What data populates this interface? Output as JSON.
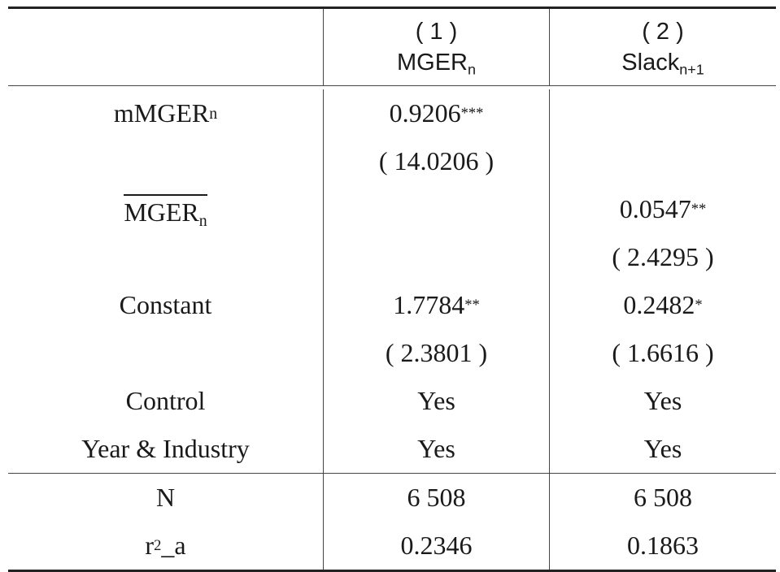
{
  "table": {
    "col_headers": [
      {
        "num": "( 1 )",
        "var": "MGER",
        "sub": "n"
      },
      {
        "num": "( 2 )",
        "var": "Slack",
        "sub": "n+1"
      }
    ],
    "rows": [
      {
        "label": "mMGER",
        "label_sub": "n",
        "c1": "0.9206",
        "c1_sup": "***",
        "c2": "",
        "c2_sup": ""
      },
      {
        "label": "",
        "label_sub": "",
        "c1": "( 14.0206 )",
        "c1_sup": "",
        "c2": "",
        "c2_sup": ""
      },
      {
        "label": "MGER",
        "label_sub": "n",
        "c1": "",
        "c1_sup": "",
        "c2": "0.0547",
        "c2_sup": "**"
      },
      {
        "label": "",
        "label_sub": "",
        "c1": "",
        "c1_sup": "",
        "c2": "( 2.4295 )",
        "c2_sup": ""
      },
      {
        "label": "Constant",
        "label_sub": "",
        "c1": "1.7784",
        "c1_sup": "**",
        "c2": "0.2482",
        "c2_sup": "*"
      },
      {
        "label": "",
        "label_sub": "",
        "c1": "( 2.3801 )",
        "c1_sup": "",
        "c2": "( 1.6616 )",
        "c2_sup": ""
      },
      {
        "label": "Control",
        "label_sub": "",
        "c1": "Yes",
        "c1_sup": "",
        "c2": "Yes",
        "c2_sup": ""
      },
      {
        "label": "Year & Industry",
        "label_sub": "",
        "c1": "Yes",
        "c1_sup": "",
        "c2": "Yes",
        "c2_sup": ""
      }
    ],
    "stats": [
      {
        "label": "N",
        "label_sup": "",
        "label_after": "",
        "c1": "6 508",
        "c2": "6 508"
      },
      {
        "label": "r",
        "label_sup": "2",
        "label_after": "_a",
        "c1": "0.2346",
        "c2": "0.1863"
      }
    ]
  }
}
